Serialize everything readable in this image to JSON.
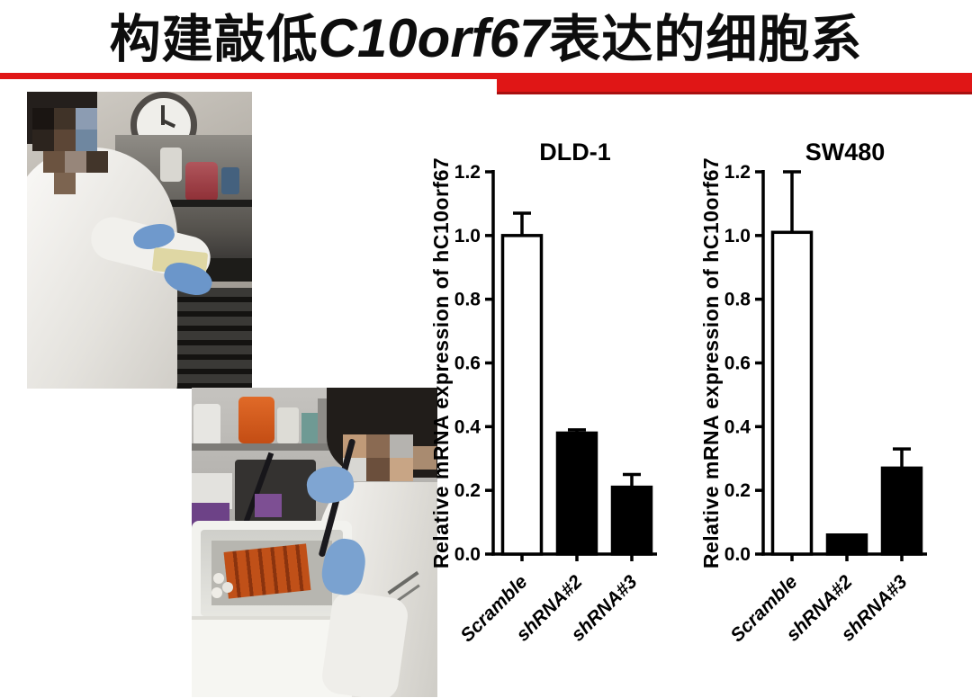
{
  "slide": {
    "title_prefix": "构建敲低",
    "title_gene": "C10orf67",
    "title_suffix": "表达的细胞系",
    "accent_color": "#e01616",
    "accent_dark": "#a81010"
  },
  "photos": [
    {
      "label": "lab-photo-1",
      "description": "Researcher in white lab coat with blue gloves and pixelated face working at a biosafety cabinet; wall clock and flasks of red culture media visible"
    },
    {
      "label": "lab-photo-2",
      "description": "Researcher in white lab coat with blue gloves and pixelated face pipetting samples over a white styrofoam ice box holding orange tubes on a cluttered lab bench"
    }
  ],
  "chart_data": [
    {
      "type": "bar",
      "title": "DLD-1",
      "categories": [
        "Scramble",
        "shRNA#2",
        "shRNA#3"
      ],
      "values": [
        1.0,
        0.38,
        0.21
      ],
      "errors": [
        0.07,
        0.01,
        0.04
      ],
      "bar_colors": [
        "#ffffff",
        "#000000",
        "#000000"
      ],
      "ylabel": "Relative mRNA expression of hC10orf67",
      "xlabel": "",
      "ylim": [
        0,
        1.2
      ],
      "ytick_step": 0.2,
      "yticks": [
        "0.0",
        "0.2",
        "0.4",
        "0.6",
        "0.8",
        "1.0",
        "1.2"
      ],
      "grid": false,
      "legend": "none"
    },
    {
      "type": "bar",
      "title": "SW480",
      "categories": [
        "Scramble",
        "shRNA#2",
        "shRNA#3"
      ],
      "values": [
        1.01,
        0.06,
        0.27
      ],
      "errors": [
        0.19,
        0,
        0.06
      ],
      "bar_colors": [
        "#ffffff",
        "#000000",
        "#000000"
      ],
      "ylabel": "Relative mRNA expression of hC10orf67",
      "xlabel": "",
      "ylim": [
        0,
        1.2
      ],
      "ytick_step": 0.2,
      "yticks": [
        "0.0",
        "0.2",
        "0.4",
        "0.6",
        "0.8",
        "1.0",
        "1.2"
      ],
      "grid": false,
      "legend": "none"
    }
  ]
}
